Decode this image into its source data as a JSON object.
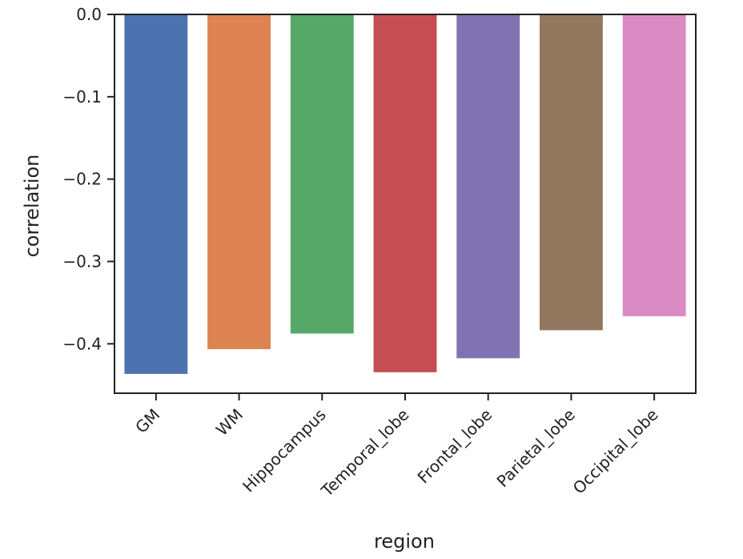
{
  "chart_data": {
    "type": "bar",
    "title": "",
    "xlabel": "region",
    "ylabel": "correlation",
    "categories": [
      "GM",
      "WM",
      "Hippocampus",
      "Temporal_lobe",
      "Frontal_lobe",
      "Parietal_lobe",
      "Occipital_lobe"
    ],
    "values": [
      -0.437,
      -0.407,
      -0.388,
      -0.435,
      -0.418,
      -0.384,
      -0.367
    ],
    "colors": [
      "#4c72b0",
      "#dd8452",
      "#55a868",
      "#c44e52",
      "#8172b3",
      "#937860",
      "#da8bc3"
    ],
    "yticks": [
      0.0,
      -0.1,
      -0.2,
      -0.3,
      -0.4
    ],
    "ytick_labels": [
      "0.0",
      "−0.1",
      "−0.2",
      "−0.3",
      "−0.4"
    ],
    "ylim": [
      -0.46,
      0.0
    ],
    "grid": false,
    "legend": "none"
  }
}
